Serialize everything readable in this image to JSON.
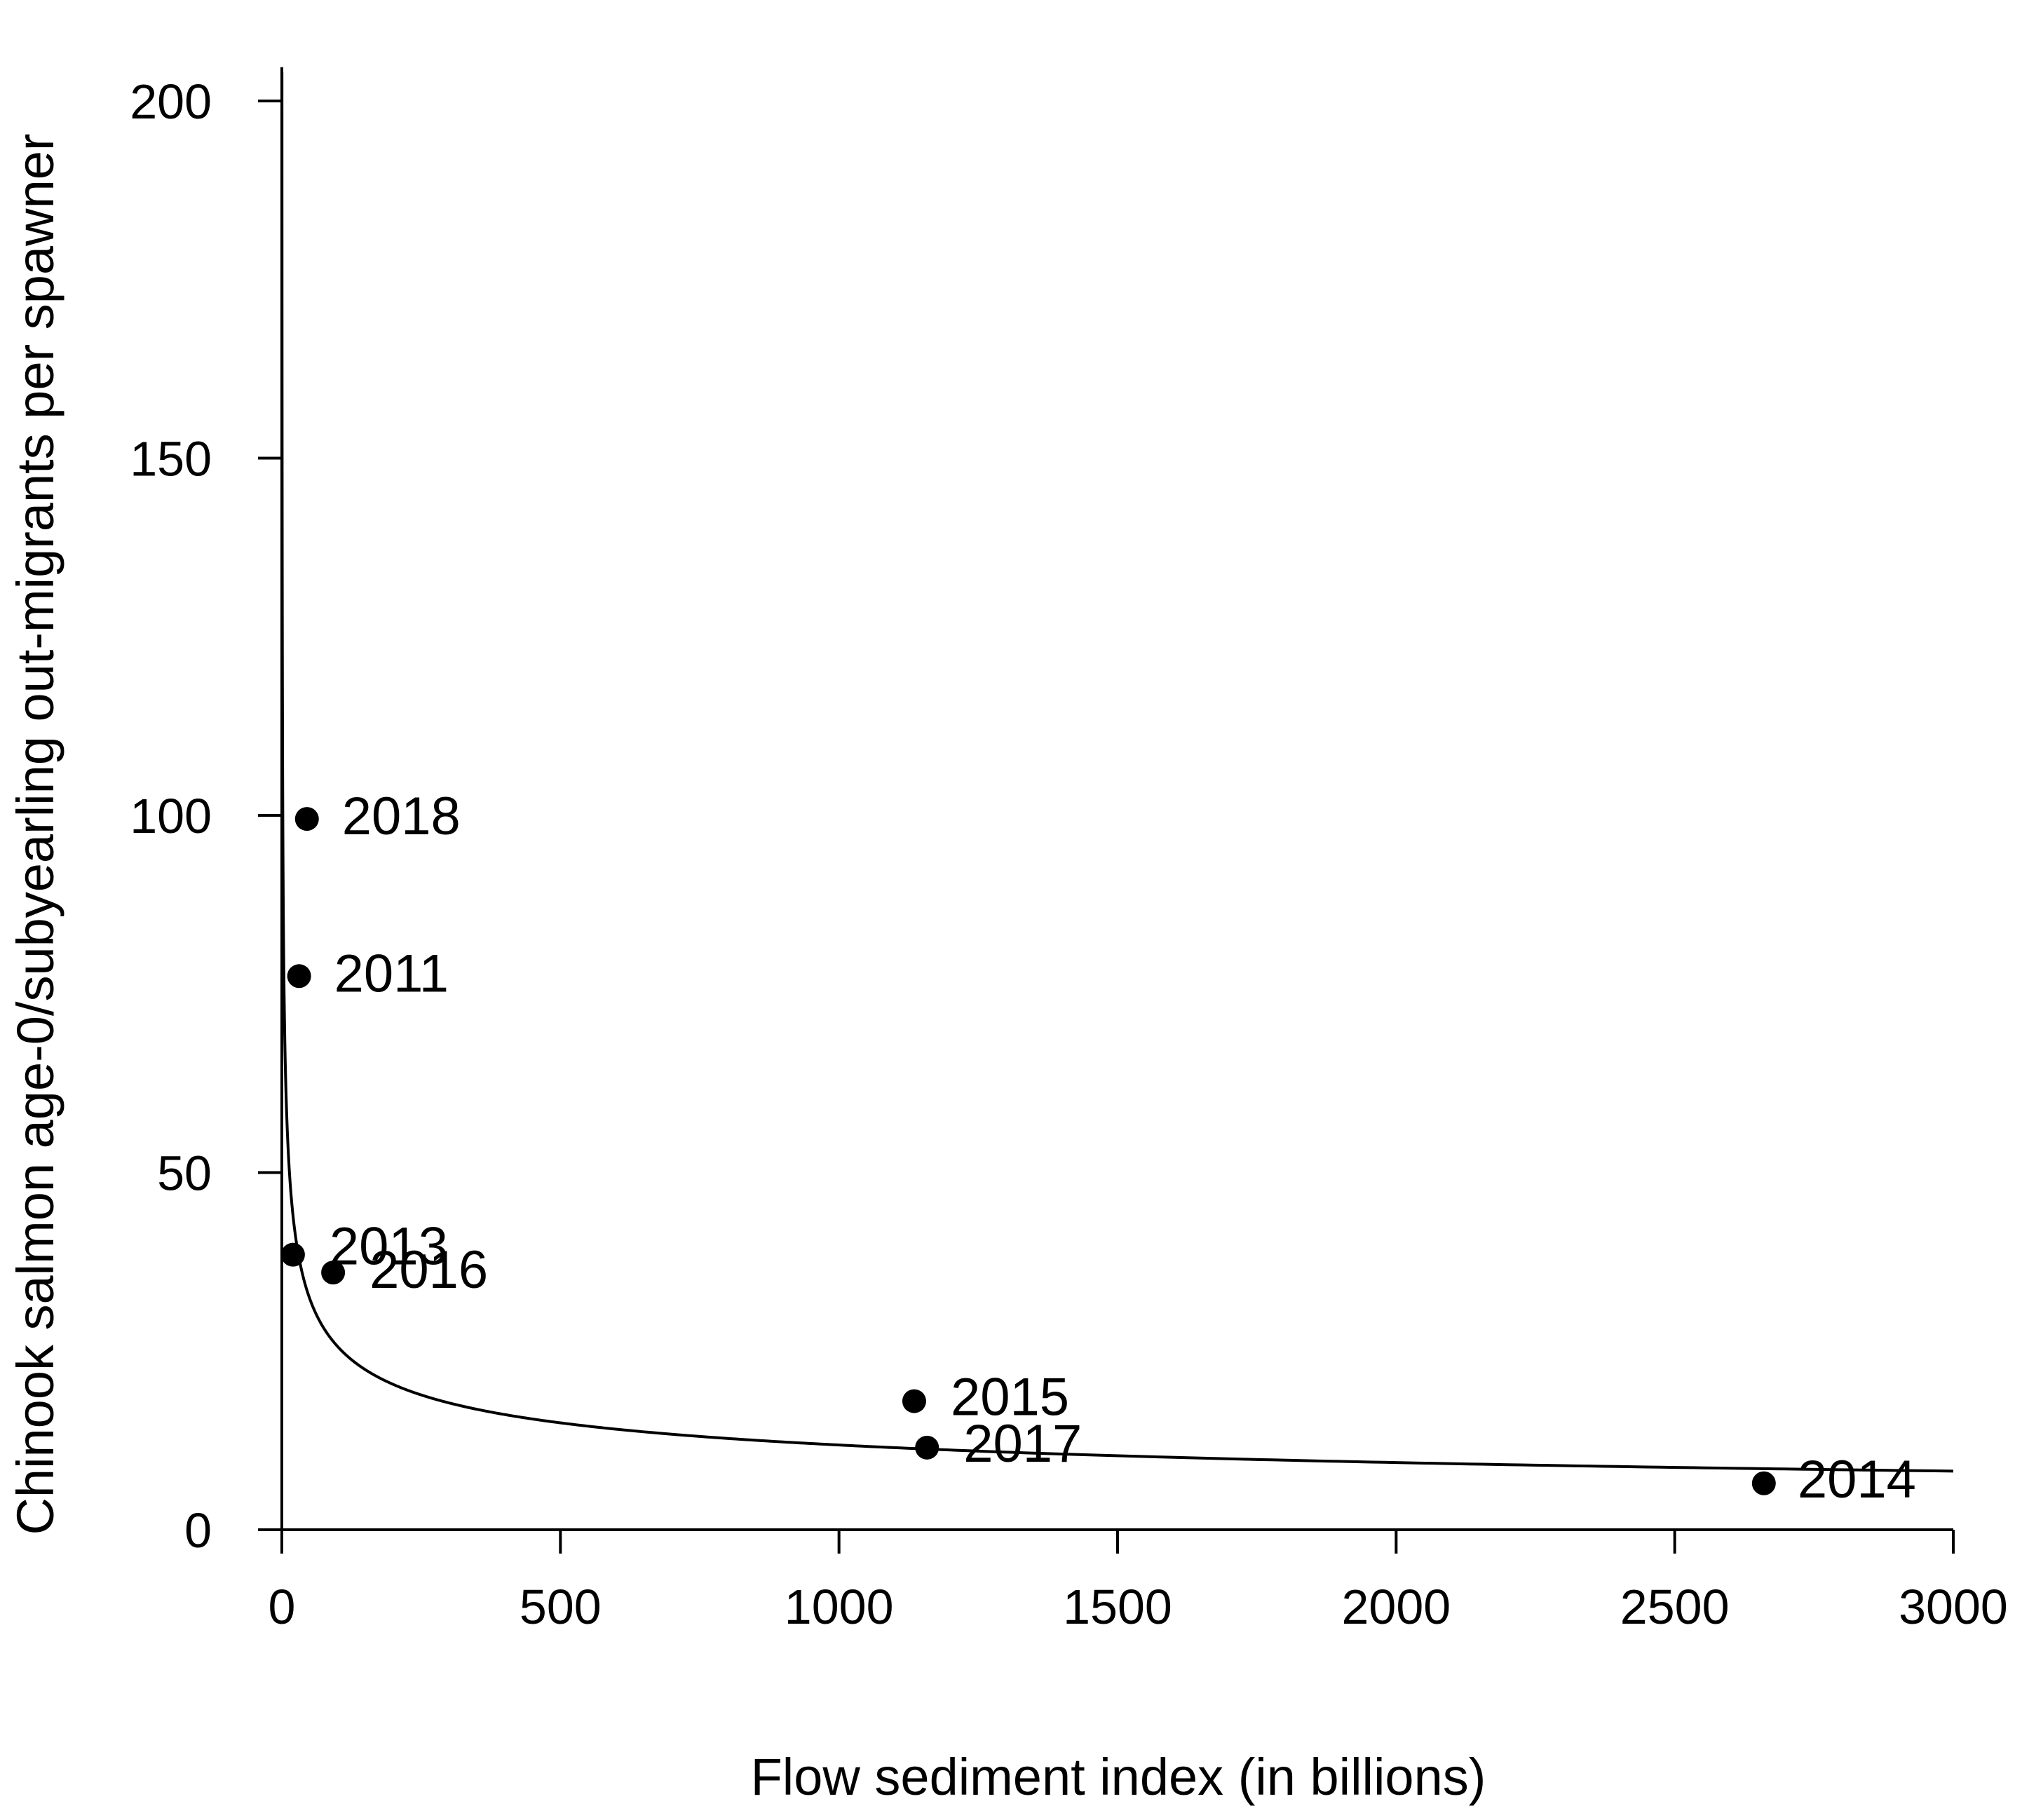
{
  "chart_data": {
    "type": "scatter",
    "title": "",
    "xlabel": "Flow sediment index (in billions)",
    "ylabel": "Chinook salmon age-0/subyearling out-migrants per spawner",
    "xlim": [
      0,
      3000
    ],
    "ylim": [
      0,
      200
    ],
    "x_ticks": [
      "0",
      "500",
      "1000",
      "1500",
      "2000",
      "2500",
      "3000"
    ],
    "y_ticks": [
      "0",
      "50",
      "100",
      "150",
      "200"
    ],
    "grid": false,
    "legend": "none",
    "points": [
      {
        "label": "2018",
        "x": 45,
        "y": 99.5
      },
      {
        "label": "2011",
        "x": 31,
        "y": 77.5
      },
      {
        "label": "2013",
        "x": 20,
        "y": 38.5
      },
      {
        "label": "2016",
        "x": 92,
        "y": 36
      },
      {
        "label": "2015",
        "x": 1135,
        "y": 18
      },
      {
        "label": "2017",
        "x": 1158,
        "y": 11.5
      },
      {
        "label": "2014",
        "x": 2660,
        "y": 6.5
      }
    ],
    "fit": {
      "form": "y = a * x^b",
      "a": 120,
      "b": -0.335,
      "x_range": [
        0.2,
        3000
      ]
    }
  },
  "colors": {
    "points": "#000000",
    "curve": "#000000",
    "axes": "#000000"
  }
}
